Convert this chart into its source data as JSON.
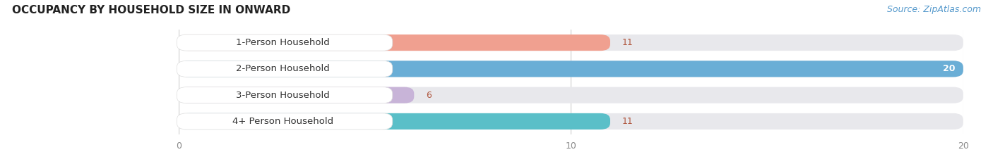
{
  "title": "OCCUPANCY BY HOUSEHOLD SIZE IN ONWARD",
  "source": "Source: ZipAtlas.com",
  "categories": [
    "1-Person Household",
    "2-Person Household",
    "3-Person Household",
    "4+ Person Household"
  ],
  "values": [
    11,
    20,
    6,
    11
  ],
  "bar_colors": [
    "#f0a090",
    "#6aaed6",
    "#c8b4d8",
    "#5abfc8"
  ],
  "bar_bg_color": "#e8e8ec",
  "value_colors": [
    "#c06858",
    "#ffffff",
    "#c06858",
    "#c06858"
  ],
  "xlim": [
    0,
    20
  ],
  "xticks": [
    0,
    10,
    20
  ],
  "title_fontsize": 11,
  "source_fontsize": 9,
  "label_fontsize": 9.5,
  "value_fontsize": 9,
  "background_color": "#ffffff",
  "grid_color": "#cccccc"
}
